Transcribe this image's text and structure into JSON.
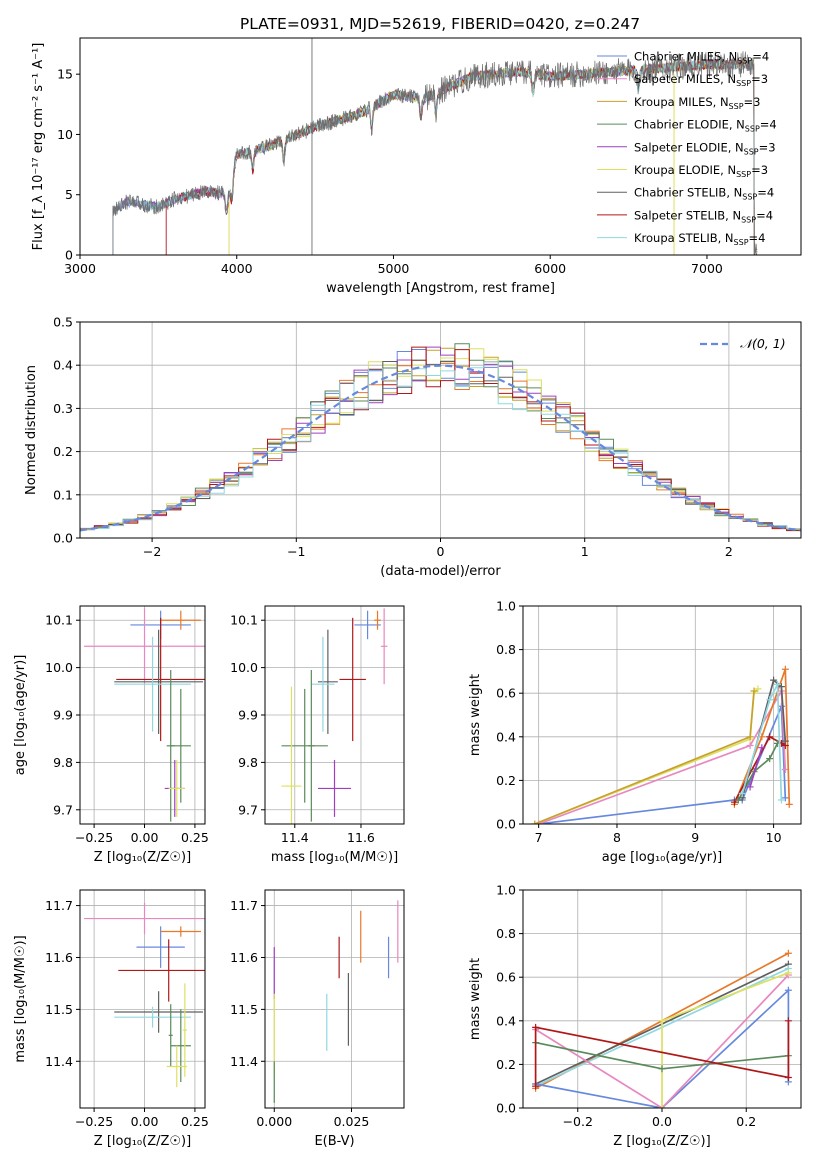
{
  "title": "PLATE=0931, MJD=52619, FIBERID=0420, z=0.247",
  "colors": [
    "#6688dd",
    "#e8782a",
    "#c8a030",
    "#5a8a5a",
    "#a040c0",
    "#dde060",
    "#606060",
    "#b01818",
    "#90d8e0",
    "#e888c0"
  ],
  "chart_data": [
    {
      "type": "line",
      "id": "spectrum",
      "title": "PLATE=0931, MJD=52619, FIBERID=0420, z=0.247",
      "xlabel": "wavelength [Angstrom, rest frame]",
      "ylabel": "Flux [f_λ 10⁻¹⁷ erg cm⁻² s⁻¹ A⁻¹]",
      "xlim": [
        3000,
        7600
      ],
      "ylim": [
        0,
        18
      ],
      "xticks": [
        3000,
        4000,
        5000,
        6000,
        7000
      ],
      "yticks": [
        0,
        5,
        10,
        15
      ],
      "legend_position": "upper right",
      "legend": [
        {
          "label": "Chabrier MILES, N_SSP=4",
          "color": "#6688dd"
        },
        {
          "label": "Salpeter MILES, N_SSP=3",
          "color": "#e888c0"
        },
        {
          "label": "Kroupa MILES, N_SSP=3",
          "color": "#c8a030"
        },
        {
          "label": "Chabrier ELODIE, N_SSP=4",
          "color": "#5a8a5a"
        },
        {
          "label": "Salpeter ELODIE, N_SSP=3",
          "color": "#a040c0"
        },
        {
          "label": "Kroupa ELODIE, N_SSP=3",
          "color": "#dde060"
        },
        {
          "label": "Chabrier STELIB, N_SSP=4",
          "color": "#606060"
        },
        {
          "label": "Salpeter STELIB, N_SSP=4",
          "color": "#b01818"
        },
        {
          "label": "Kroupa STELIB, N_SSP=4",
          "color": "#90d8e0"
        }
      ],
      "continuum": [
        [
          3200,
          0
        ],
        [
          3210,
          3.6
        ],
        [
          3300,
          4.4
        ],
        [
          3500,
          4.0
        ],
        [
          3600,
          4.6
        ],
        [
          3800,
          5.3
        ],
        [
          3950,
          5.0
        ],
        [
          4000,
          8.3
        ],
        [
          4200,
          9.0
        ],
        [
          4500,
          10.6
        ],
        [
          4800,
          11.8
        ],
        [
          5000,
          13.3
        ],
        [
          5200,
          13.0
        ],
        [
          5500,
          14.8
        ],
        [
          5800,
          15.2
        ],
        [
          6000,
          14.8
        ],
        [
          6500,
          15.3
        ],
        [
          7000,
          15.8
        ],
        [
          7300,
          15.8
        ]
      ],
      "absorption_features": [
        3934,
        3969,
        4102,
        4300,
        4861,
        5175,
        5270,
        5890,
        6563
      ],
      "data_range": [
        3210,
        7320
      ],
      "cut_edges": [
        3550,
        3950,
        6790
      ],
      "spike_wavelength": 4480
    },
    {
      "type": "line",
      "id": "residuals",
      "xlabel": "(data-model)/error",
      "ylabel": "Normed distribution",
      "xlim": [
        -2.5,
        2.5
      ],
      "ylim": [
        0,
        0.5
      ],
      "xticks": [
        -2,
        -1,
        0,
        1,
        2
      ],
      "yticks": [
        0.0,
        0.1,
        0.2,
        0.3,
        0.4,
        0.5
      ],
      "bin_width": 0.1,
      "legend": [
        {
          "label": "𝒩(0, 1)",
          "color": "#6688dd"
        }
      ],
      "series": [
        {
          "name": "N(0,1)",
          "type": "gaussian",
          "mu": 0,
          "sigma": 1
        }
      ],
      "histograms": 9
    },
    {
      "type": "scatter",
      "id": "age_Z",
      "xlabel": "Z [log₁₀(Z/Z☉)]",
      "ylabel": "age  [log₁₀(age/yr)]",
      "xlim": [
        -0.32,
        0.3
      ],
      "ylim": [
        9.67,
        10.13
      ],
      "xticks": [
        -0.25,
        0.0,
        0.25
      ],
      "yticks": [
        9.7,
        9.8,
        9.9,
        10.0,
        10.1
      ],
      "points": [
        {
          "x": 0.08,
          "xerr": 0.15,
          "y": 10.09,
          "yerr": 0.03,
          "color": "#6688dd"
        },
        {
          "x": 0.18,
          "xerr": 0.1,
          "y": 10.1,
          "yerr": 0.02,
          "color": "#e8782a"
        },
        {
          "x": 0.0,
          "xerr": 0.3,
          "y": 10.045,
          "yerr": 0.08,
          "color": "#e888c0"
        },
        {
          "x": 0.08,
          "xerr": 0.22,
          "y": 9.975,
          "yerr": 0.13,
          "color": "#b01818"
        },
        {
          "x": 0.07,
          "xerr": 0.22,
          "y": 9.97,
          "yerr": 0.11,
          "color": "#606060"
        },
        {
          "x": 0.04,
          "xerr": 0.19,
          "y": 9.965,
          "yerr": 0.1,
          "color": "#90d8e0"
        },
        {
          "x": 0.18,
          "xerr": 0.05,
          "y": 9.835,
          "yerr": 0.12,
          "color": "#5a8a5a"
        },
        {
          "x": 0.13,
          "xerr": 0.02,
          "y": 9.835,
          "yerr": 0.16,
          "color": "#5a8a5a"
        },
        {
          "x": 0.15,
          "xerr": 0.05,
          "y": 9.745,
          "yerr": 0.06,
          "color": "#a040c0"
        },
        {
          "x": 0.16,
          "xerr": 0.04,
          "y": 9.745,
          "yerr": 0.06,
          "color": "#dde060"
        }
      ]
    },
    {
      "type": "scatter",
      "id": "age_mass",
      "xlabel": "mass [log₁₀(M/M☉)]",
      "ylabel": "",
      "xlim": [
        11.31,
        11.73
      ],
      "ylim": [
        9.67,
        10.13
      ],
      "xticks": [
        11.4,
        11.6
      ],
      "yticks": [
        9.7,
        9.8,
        9.9,
        10.0,
        10.1
      ],
      "points": [
        {
          "x": 11.62,
          "xerr": 0.04,
          "y": 10.09,
          "yerr": 0.03,
          "color": "#6688dd"
        },
        {
          "x": 11.65,
          "xerr": 0.01,
          "y": 10.1,
          "yerr": 0.02,
          "color": "#e8782a"
        },
        {
          "x": 11.67,
          "xerr": 0.01,
          "y": 10.045,
          "yerr": 0.08,
          "color": "#e888c0"
        },
        {
          "x": 11.575,
          "xerr": 0.04,
          "y": 9.975,
          "yerr": 0.13,
          "color": "#b01818"
        },
        {
          "x": 11.5,
          "xerr": 0.03,
          "y": 9.97,
          "yerr": 0.11,
          "color": "#606060"
        },
        {
          "x": 11.485,
          "xerr": 0.035,
          "y": 9.965,
          "yerr": 0.1,
          "color": "#90d8e0"
        },
        {
          "x": 11.43,
          "xerr": 0.07,
          "y": 9.835,
          "yerr": 0.12,
          "color": "#5a8a5a"
        },
        {
          "x": 11.45,
          "xerr": 0.01,
          "y": 9.835,
          "yerr": 0.16,
          "color": "#5a8a5a"
        },
        {
          "x": 11.52,
          "xerr": 0.05,
          "y": 9.745,
          "yerr": 0.06,
          "color": "#a040c0"
        },
        {
          "x": 11.39,
          "xerr": 0.03,
          "y": 9.75,
          "yerr": 0.21,
          "color": "#dde060"
        }
      ]
    },
    {
      "type": "line",
      "id": "weight_age",
      "xlabel": "age  [log₁₀(age/yr)]",
      "ylabel": "mass weight",
      "xlim": [
        6.8,
        10.35
      ],
      "ylim": [
        0,
        1
      ],
      "xticks": [
        7,
        8,
        9,
        10
      ],
      "yticks": [
        0.0,
        0.2,
        0.4,
        0.6,
        0.8,
        1.0
      ],
      "series": [
        {
          "color": "#6688dd",
          "x": [
            7.0,
            9.5,
            9.6,
            10.1,
            10.15
          ],
          "y": [
            0.0,
            0.11,
            0.11,
            0.54,
            0.12
          ]
        },
        {
          "color": "#e888c0",
          "x": [
            7.0,
            9.7,
            10.1,
            10.15
          ],
          "y": [
            0.0,
            0.36,
            0.61,
            0.25
          ]
        },
        {
          "color": "#dde060",
          "x": [
            6.95,
            9.7,
            9.75,
            9.8
          ],
          "y": [
            0.0,
            0.39,
            0.6,
            0.62
          ]
        },
        {
          "color": "#c8a030",
          "x": [
            6.95,
            9.7,
            9.75
          ],
          "y": [
            0.0,
            0.4,
            0.61
          ]
        },
        {
          "color": "#e8782a",
          "x": [
            9.5,
            9.85,
            10.15,
            10.2
          ],
          "y": [
            0.09,
            0.4,
            0.71,
            0.09
          ]
        },
        {
          "color": "#b01818",
          "x": [
            9.5,
            9.95,
            10.1,
            10.15
          ],
          "y": [
            0.1,
            0.4,
            0.37,
            0.36
          ]
        },
        {
          "color": "#5a8a5a",
          "x": [
            9.55,
            9.75,
            9.95,
            10.05
          ],
          "y": [
            0.11,
            0.24,
            0.3,
            0.37
          ]
        },
        {
          "color": "#606060",
          "x": [
            9.6,
            10.0,
            10.1,
            10.15
          ],
          "y": [
            0.12,
            0.66,
            0.63,
            0.38
          ]
        },
        {
          "color": "#90d8e0",
          "x": [
            9.6,
            9.95,
            10.05,
            10.1
          ],
          "y": [
            0.14,
            0.57,
            0.64,
            0.11
          ]
        },
        {
          "color": "#a040c0",
          "x": [
            9.7,
            9.85
          ],
          "y": [
            0.17,
            0.35
          ]
        }
      ]
    },
    {
      "type": "scatter",
      "id": "mass_Z",
      "xlabel": "Z [log₁₀(Z/Z☉)]",
      "ylabel": "mass [log₁₀(M/M☉)]",
      "xlim": [
        -0.32,
        0.3
      ],
      "ylim": [
        11.31,
        11.73
      ],
      "xticks": [
        -0.25,
        0.0,
        0.25
      ],
      "yticks": [
        11.4,
        11.5,
        11.6,
        11.7
      ],
      "points": [
        {
          "x": 0.08,
          "xerr": 0.12,
          "y": 11.62,
          "yerr": 0.04,
          "color": "#6688dd"
        },
        {
          "x": 0.18,
          "xerr": 0.1,
          "y": 11.65,
          "yerr": 0.01,
          "color": "#e8782a"
        },
        {
          "x": 0.0,
          "xerr": 0.3,
          "y": 11.675,
          "yerr": 0.03,
          "color": "#e888c0"
        },
        {
          "x": 0.12,
          "xerr": 0.25,
          "y": 11.575,
          "yerr": 0.06,
          "color": "#b01818"
        },
        {
          "x": 0.07,
          "xerr": 0.22,
          "y": 11.495,
          "yerr": 0.04,
          "color": "#606060"
        },
        {
          "x": 0.04,
          "xerr": 0.19,
          "y": 11.485,
          "yerr": 0.02,
          "color": "#90d8e0"
        },
        {
          "x": 0.18,
          "xerr": 0.05,
          "y": 11.43,
          "yerr": 0.07,
          "color": "#5a8a5a"
        },
        {
          "x": 0.13,
          "xerr": 0.01,
          "y": 11.45,
          "yerr": 0.06,
          "color": "#5a8a5a"
        },
        {
          "x": 0.16,
          "xerr": 0.05,
          "y": 11.39,
          "yerr": 0.04,
          "color": "#dde060"
        },
        {
          "x": 0.2,
          "xerr": 0.01,
          "y": 11.46,
          "yerr": 0.09,
          "color": "#dde060"
        }
      ]
    },
    {
      "type": "scatter",
      "id": "mass_ebv",
      "xlabel": "E(B-V)",
      "ylabel": "",
      "xlim": [
        -0.003,
        0.042
      ],
      "ylim": [
        11.31,
        11.73
      ],
      "xticks": [
        0.0,
        0.025
      ],
      "yticks": [
        11.4,
        11.5,
        11.6,
        11.7
      ],
      "points": [
        {
          "x": 0.037,
          "y": 11.6,
          "yerr": 0.04,
          "color": "#6688dd"
        },
        {
          "x": 0.028,
          "y": 11.64,
          "yerr": 0.05,
          "color": "#e8782a"
        },
        {
          "x": 0.04,
          "y": 11.65,
          "yerr": 0.06,
          "color": "#e888c0"
        },
        {
          "x": 0.021,
          "y": 11.6,
          "yerr": 0.04,
          "color": "#b01818"
        },
        {
          "x": 0.024,
          "y": 11.5,
          "yerr": 0.07,
          "color": "#606060"
        },
        {
          "x": 0.017,
          "y": 11.475,
          "yerr": 0.055,
          "color": "#90d8e0"
        },
        {
          "x": 0.0,
          "y": 11.57,
          "yerr": 0.05,
          "color": "#a040c0"
        },
        {
          "x": 0.0,
          "y": 11.45,
          "yerr": 0.08,
          "color": "#dde060"
        },
        {
          "x": 0.0,
          "y": 11.36,
          "yerr": 0.04,
          "color": "#5a8a5a"
        }
      ]
    },
    {
      "type": "line",
      "id": "weight_Z",
      "xlabel": "Z [log₁₀(Z/Z☉)]",
      "ylabel": "mass weight",
      "xlim": [
        -0.33,
        0.33
      ],
      "ylim": [
        0,
        1
      ],
      "xticks": [
        -0.2,
        0.0,
        0.2
      ],
      "yticks": [
        0.0,
        0.2,
        0.4,
        0.6,
        0.8,
        1.0
      ],
      "series": [
        {
          "color": "#e8782a",
          "x": [
            -0.3,
            0.3
          ],
          "y": [
            0.09,
            0.71
          ]
        },
        {
          "color": "#606060",
          "x": [
            -0.3,
            0.3
          ],
          "y": [
            0.11,
            0.66
          ]
        },
        {
          "color": "#90d8e0",
          "x": [
            -0.3,
            0.3
          ],
          "y": [
            0.1,
            0.64
          ]
        },
        {
          "color": "#6688dd",
          "x": [
            -0.3,
            0.0,
            0.3,
            0.3
          ],
          "y": [
            0.11,
            0.0,
            0.54,
            0.12
          ]
        },
        {
          "color": "#e888c0",
          "x": [
            -0.3,
            0.0,
            0.3
          ],
          "y": [
            0.36,
            0.0,
            0.61
          ]
        },
        {
          "color": "#dde060",
          "x": [
            0.0,
            0.0,
            0.3
          ],
          "y": [
            0.0,
            0.4,
            0.62
          ]
        },
        {
          "color": "#5a8a5a",
          "x": [
            -0.3,
            0.0,
            0.3
          ],
          "y": [
            0.3,
            0.18,
            0.24
          ]
        },
        {
          "color": "#b01818",
          "x": [
            -0.3,
            -0.3,
            0.3,
            0.3
          ],
          "y": [
            0.1,
            0.37,
            0.14,
            0.4
          ]
        }
      ]
    }
  ]
}
